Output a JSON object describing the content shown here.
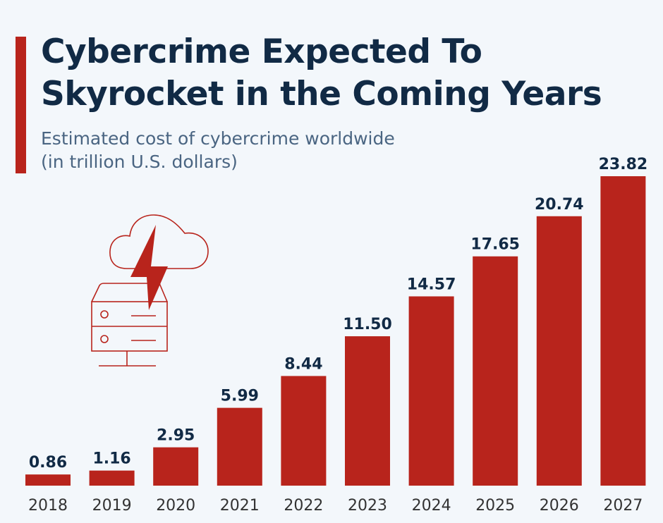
{
  "title_line1": "Cybercrime Expected To",
  "title_line2": "Skyrocket in the Coming Years",
  "subtitle_line1": "Estimated cost of cybercrime worldwide",
  "subtitle_line2": "(in trillion U.S. dollars)",
  "colors": {
    "bar": "#b8241c",
    "text": "#112a45",
    "background": "#f3f7fb"
  },
  "icon": "cloud-lightning-server-icon",
  "chart_data": {
    "type": "bar",
    "title": "Cybercrime Expected To Skyrocket in the Coming Years",
    "subtitle": "Estimated cost of cybercrime worldwide (in trillion U.S. dollars)",
    "categories": [
      "2018",
      "2019",
      "2020",
      "2021",
      "2022",
      "2023",
      "2024",
      "2025",
      "2026",
      "2027"
    ],
    "values": [
      0.86,
      1.16,
      2.95,
      5.99,
      8.44,
      11.5,
      14.57,
      17.65,
      20.74,
      23.82
    ],
    "labels": [
      "0.86",
      "1.16",
      "2.95",
      "5.99",
      "8.44",
      "11.50",
      "14.57",
      "17.65",
      "20.74",
      "23.82"
    ],
    "ylim": [
      0,
      23.82
    ],
    "grid": false,
    "legend": "none"
  }
}
